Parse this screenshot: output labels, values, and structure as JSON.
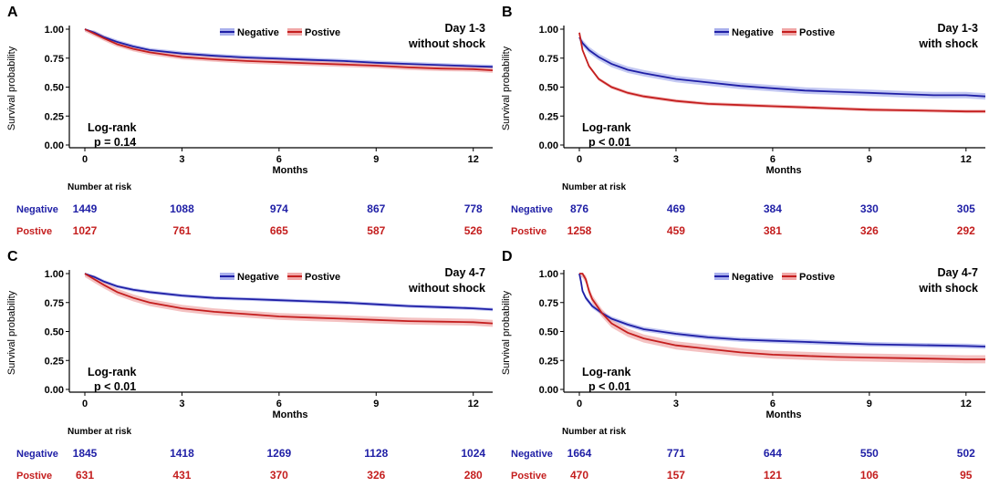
{
  "colors": {
    "negative": "#1f1fa6",
    "positive": "#c41e1e",
    "negative_band": "#aab0ec",
    "positive_band": "#f0a8a8"
  },
  "chart_data": [
    {
      "panel": "A",
      "type": "line",
      "title": "Day 1-3\nwithout shock",
      "xlabel": "Months",
      "ylabel": "Survival probability",
      "xlim": [
        0,
        12.6
      ],
      "ylim": [
        0,
        1
      ],
      "xticks": [
        "0",
        "3",
        "6",
        "9",
        "12"
      ],
      "yticks": [
        "0.00",
        "0.25",
        "0.50",
        "0.75",
        "1.00"
      ],
      "legend": {
        "position": "top-center",
        "entries": [
          "Negative",
          "Postive"
        ]
      },
      "annotation": "Log-rank\np = 0.14",
      "series": [
        {
          "name": "Negative",
          "x": [
            0,
            0.3,
            0.6,
            1,
            1.5,
            2,
            3,
            4,
            5,
            6,
            7,
            8,
            9,
            10,
            11,
            12,
            12.6
          ],
          "y": [
            1,
            0.97,
            0.93,
            0.89,
            0.85,
            0.82,
            0.79,
            0.77,
            0.755,
            0.745,
            0.735,
            0.725,
            0.71,
            0.7,
            0.69,
            0.68,
            0.675
          ],
          "ci": 0.018
        },
        {
          "name": "Postive",
          "x": [
            0,
            0.3,
            0.6,
            1,
            1.5,
            2,
            3,
            4,
            5,
            6,
            7,
            8,
            9,
            10,
            11,
            12,
            12.6
          ],
          "y": [
            1,
            0.96,
            0.92,
            0.87,
            0.83,
            0.8,
            0.76,
            0.74,
            0.725,
            0.715,
            0.705,
            0.695,
            0.685,
            0.67,
            0.66,
            0.655,
            0.645
          ],
          "ci": 0.022
        }
      ],
      "risk_table": {
        "title": "Number at risk",
        "rows": [
          {
            "label": "Negative",
            "values": [
              "1449",
              "1088",
              "974",
              "867",
              "778"
            ]
          },
          {
            "label": "Postive",
            "values": [
              "1027",
              "761",
              "665",
              "587",
              "526"
            ]
          }
        ]
      }
    },
    {
      "panel": "B",
      "type": "line",
      "title": "Day 1-3\nwith shock",
      "xlabel": "Months",
      "ylabel": "Survival probability",
      "xlim": [
        0,
        12.6
      ],
      "ylim": [
        0,
        1
      ],
      "xticks": [
        "0",
        "3",
        "6",
        "9",
        "12"
      ],
      "yticks": [
        "0.00",
        "0.25",
        "0.50",
        "0.75",
        "1.00"
      ],
      "legend": {
        "position": "top-center",
        "entries": [
          "Negative",
          "Postive"
        ]
      },
      "annotation": "Log-rank\np < 0.01",
      "series": [
        {
          "name": "Negative",
          "x": [
            0,
            0.1,
            0.3,
            0.6,
            1,
            1.5,
            2,
            3,
            4,
            5,
            6,
            7,
            8,
            9,
            10,
            11,
            12,
            12.6
          ],
          "y": [
            0.93,
            0.88,
            0.82,
            0.76,
            0.7,
            0.65,
            0.62,
            0.57,
            0.54,
            0.51,
            0.49,
            0.47,
            0.46,
            0.45,
            0.44,
            0.43,
            0.43,
            0.42
          ],
          "ci": 0.028
        },
        {
          "name": "Postive",
          "x": [
            0,
            0.1,
            0.3,
            0.6,
            1,
            1.5,
            2,
            3,
            4,
            5,
            6,
            7,
            8,
            9,
            10,
            11,
            12,
            12.6
          ],
          "y": [
            0.97,
            0.82,
            0.68,
            0.57,
            0.5,
            0.45,
            0.42,
            0.38,
            0.355,
            0.345,
            0.335,
            0.325,
            0.315,
            0.305,
            0.3,
            0.295,
            0.29,
            0.29
          ],
          "ci": 0.015
        }
      ],
      "risk_table": {
        "title": "Number at risk",
        "rows": [
          {
            "label": "Negative",
            "values": [
              "876",
              "469",
              "384",
              "330",
              "305"
            ]
          },
          {
            "label": "Postive",
            "values": [
              "1258",
              "459",
              "381",
              "326",
              "292"
            ]
          }
        ]
      }
    },
    {
      "panel": "C",
      "type": "line",
      "title": "Day 4-7\nwithout shock",
      "xlabel": "Months",
      "ylabel": "Survival probability",
      "xlim": [
        0,
        12.6
      ],
      "ylim": [
        0,
        1
      ],
      "xticks": [
        "0",
        "3",
        "6",
        "9",
        "12"
      ],
      "yticks": [
        "0.00",
        "0.25",
        "0.50",
        "0.75",
        "1.00"
      ],
      "legend": {
        "position": "top-center",
        "entries": [
          "Negative",
          "Postive"
        ]
      },
      "annotation": "Log-rank\np < 0.01",
      "series": [
        {
          "name": "Negative",
          "x": [
            0,
            0.3,
            0.6,
            1,
            1.5,
            2,
            3,
            4,
            5,
            6,
            7,
            8,
            9,
            10,
            11,
            12,
            12.6
          ],
          "y": [
            1,
            0.97,
            0.93,
            0.89,
            0.86,
            0.84,
            0.81,
            0.79,
            0.78,
            0.77,
            0.76,
            0.75,
            0.735,
            0.72,
            0.71,
            0.7,
            0.69
          ],
          "ci": 0.015
        },
        {
          "name": "Postive",
          "x": [
            0,
            0.3,
            0.6,
            1,
            1.5,
            2,
            3,
            4,
            5,
            6,
            7,
            8,
            9,
            10,
            11,
            12,
            12.6
          ],
          "y": [
            1,
            0.95,
            0.9,
            0.84,
            0.79,
            0.75,
            0.7,
            0.67,
            0.65,
            0.63,
            0.62,
            0.61,
            0.6,
            0.59,
            0.585,
            0.58,
            0.57
          ],
          "ci": 0.03
        }
      ],
      "risk_table": {
        "title": "Number at risk",
        "rows": [
          {
            "label": "Negative",
            "values": [
              "1845",
              "1418",
              "1269",
              "1128",
              "1024"
            ]
          },
          {
            "label": "Postive",
            "values": [
              "631",
              "431",
              "370",
              "326",
              "280"
            ]
          }
        ]
      }
    },
    {
      "panel": "D",
      "type": "line",
      "title": "Day 4-7\nwith shock",
      "xlabel": "Months",
      "ylabel": "Survival probability",
      "xlim": [
        0,
        12.6
      ],
      "ylim": [
        0,
        1
      ],
      "xticks": [
        "0",
        "3",
        "6",
        "9",
        "12"
      ],
      "yticks": [
        "0.00",
        "0.25",
        "0.50",
        "0.75",
        "1.00"
      ],
      "legend": {
        "position": "top-center",
        "entries": [
          "Negative",
          "Postive"
        ]
      },
      "annotation": "Log-rank\np < 0.01",
      "series": [
        {
          "name": "Negative",
          "x": [
            0,
            0.05,
            0.1,
            0.2,
            0.4,
            0.7,
            1,
            1.5,
            2,
            3,
            4,
            5,
            6,
            7,
            8,
            9,
            10,
            11,
            12,
            12.6
          ],
          "y": [
            1,
            0.93,
            0.85,
            0.79,
            0.72,
            0.66,
            0.61,
            0.56,
            0.52,
            0.48,
            0.45,
            0.43,
            0.42,
            0.41,
            0.4,
            0.39,
            0.385,
            0.38,
            0.375,
            0.37
          ],
          "ci": 0.02
        },
        {
          "name": "Postive",
          "x": [
            0,
            0.1,
            0.2,
            0.3,
            0.4,
            0.7,
            1,
            1.5,
            2,
            3,
            4,
            5,
            6,
            7,
            8,
            9,
            10,
            11,
            12,
            12.6
          ],
          "y": [
            1,
            1,
            0.95,
            0.85,
            0.78,
            0.66,
            0.57,
            0.49,
            0.44,
            0.38,
            0.35,
            0.32,
            0.3,
            0.29,
            0.28,
            0.275,
            0.27,
            0.265,
            0.26,
            0.26
          ],
          "ci": 0.035
        }
      ],
      "risk_table": {
        "title": "Number at risk",
        "rows": [
          {
            "label": "Negative",
            "values": [
              "1664",
              "771",
              "644",
              "550",
              "502"
            ]
          },
          {
            "label": "Postive",
            "values": [
              "470",
              "157",
              "121",
              "106",
              "95"
            ]
          }
        ]
      }
    }
  ]
}
